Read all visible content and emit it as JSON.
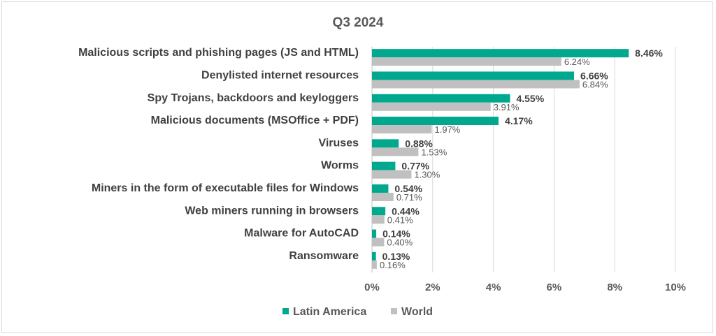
{
  "chart_data": {
    "type": "bar",
    "orientation": "horizontal",
    "title": "Q3 2024",
    "categories": [
      "Malicious scripts and phishing pages (JS and HTML)",
      "Denylisted internet resources",
      "Spy Trojans, backdoors and keyloggers",
      "Malicious documents (MSOffice + PDF)",
      "Viruses",
      "Worms",
      "Miners in the form of executable files for Windows",
      "Web miners running in browsers",
      "Malware for AutoCAD",
      "Ransomware"
    ],
    "series": [
      {
        "name": "Latin America",
        "color": "#00a88e",
        "values": [
          8.46,
          6.66,
          4.55,
          4.17,
          0.88,
          0.77,
          0.54,
          0.44,
          0.14,
          0.13
        ],
        "labels": [
          "8.46%",
          "6.66%",
          "4.55%",
          "4.17%",
          "0.88%",
          "0.77%",
          "0.54%",
          "0.44%",
          "0.14%",
          "0.13%"
        ]
      },
      {
        "name": "World",
        "color": "#c0c0c0",
        "values": [
          6.24,
          6.84,
          3.91,
          1.97,
          1.53,
          1.3,
          0.71,
          0.41,
          0.4,
          0.16
        ],
        "labels": [
          "6.24%",
          "6.84%",
          "3.91%",
          "1.97%",
          "1.53%",
          "1.30%",
          "0.71%",
          "0.41%",
          "0.40%",
          "0.16%"
        ]
      }
    ],
    "xlim": [
      0,
      10
    ],
    "xticks": [
      "0%",
      "2%",
      "4%",
      "6%",
      "8%",
      "10%"
    ],
    "grid": true,
    "legend_position": "bottom"
  }
}
